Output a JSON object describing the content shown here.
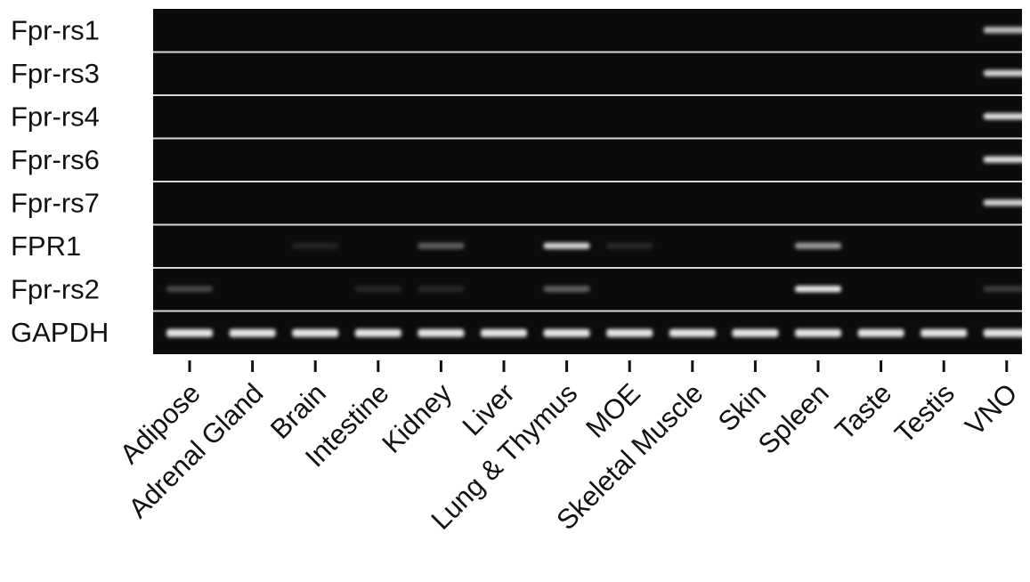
{
  "gel": {
    "rows": [
      "Fpr-rs1",
      "Fpr-rs3",
      "Fpr-rs4",
      "Fpr-rs6",
      "Fpr-rs7",
      "FPR1",
      "Fpr-rs2",
      "GAPDH"
    ],
    "lanes": [
      "Adipose",
      "Adrenal Gland",
      "Brain",
      "Intestine",
      "Kidney",
      "Liver",
      "Lung & Thymus",
      "MOE",
      "Skeletal Muscle",
      "Skin",
      "Spleen",
      "Taste",
      "Testis",
      "VNO"
    ]
  }
}
